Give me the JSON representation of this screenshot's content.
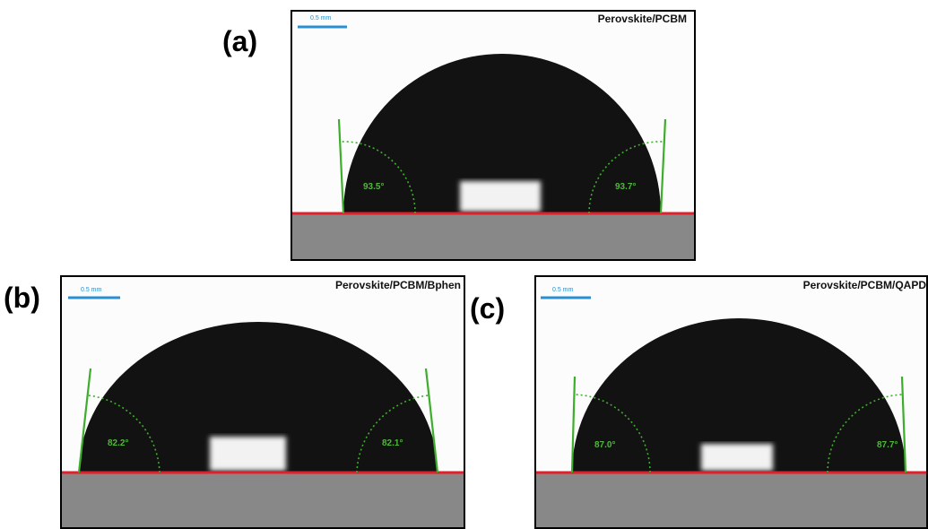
{
  "panels": [
    {
      "label": "(a)",
      "title": "Perovskite/PCBM",
      "scale": "0.5 mm",
      "left_angle": "93.5°",
      "right_angle": "93.7°"
    },
    {
      "label": "(b)",
      "title": "Perovskite/PCBM/Bphen",
      "scale": "0.5 mm",
      "left_angle": "82.2°",
      "right_angle": "82.1°"
    },
    {
      "label": "(c)",
      "title": "Perovskite/PCBM/QAPD",
      "scale": "0.5 mm",
      "left_angle": "87.0°",
      "right_angle": "87.7°"
    }
  ]
}
